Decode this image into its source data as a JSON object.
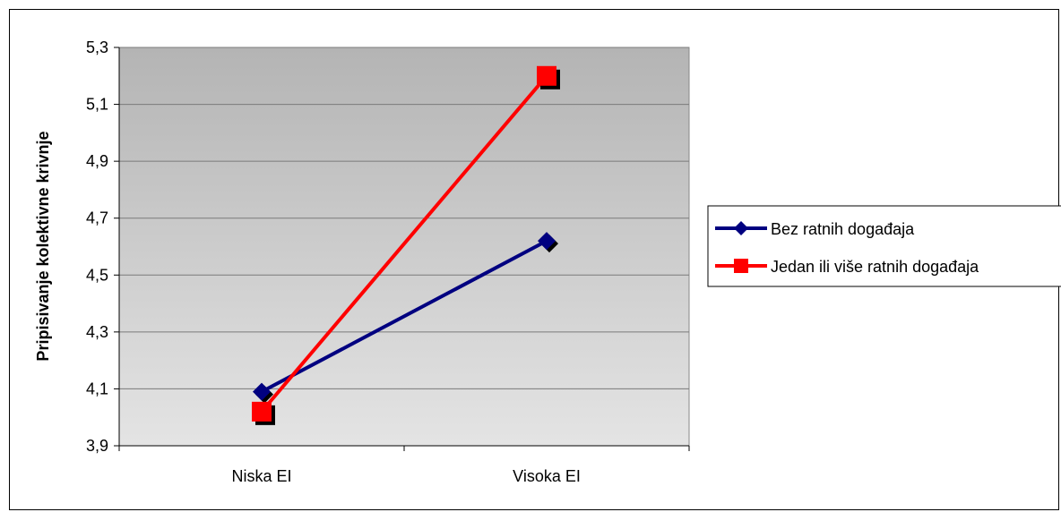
{
  "chart_data": {
    "type": "line",
    "title": "",
    "xlabel": "",
    "ylabel": "Pripisivanje kolektivne krivnje",
    "categories": [
      "Niska EI",
      "Visoka EI"
    ],
    "ylim": [
      3.9,
      5.3
    ],
    "yticks": [
      "3,9",
      "4,1",
      "4,3",
      "4,5",
      "4,7",
      "4,9",
      "5,1",
      "5,3"
    ],
    "ytick_values": [
      3.9,
      4.1,
      4.3,
      4.5,
      4.7,
      4.9,
      5.1,
      5.3
    ],
    "grid": true,
    "legend_position": "right",
    "series": [
      {
        "name": "Bez ratnih događaja",
        "values": [
          4.09,
          4.62
        ],
        "color": "#000080",
        "marker": "diamond"
      },
      {
        "name": "Jedan ili više ratnih događaja",
        "values": [
          4.02,
          5.2
        ],
        "color": "#ff0000",
        "marker": "square"
      }
    ]
  }
}
